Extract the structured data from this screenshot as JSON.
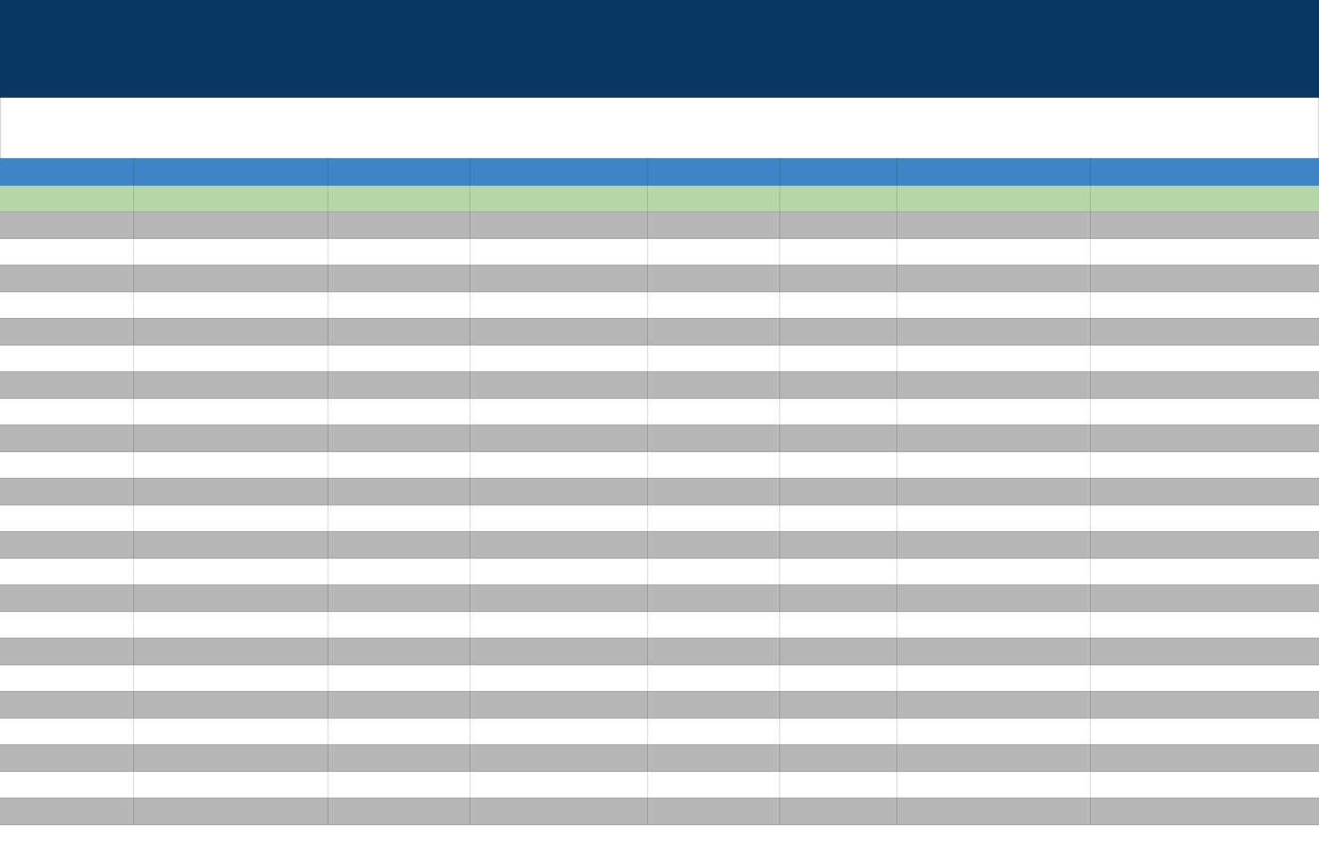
{
  "sheet": {
    "title": "",
    "subtitle": "",
    "colors": {
      "banner": "#083763",
      "header_row": "#3f85c6",
      "sub_header_row": "#b6d7a8",
      "band_gray": "#b7b7b7",
      "band_white": "#ffffff"
    },
    "columns": [
      "",
      "",
      "",
      "",
      "",
      "",
      "",
      ""
    ],
    "sub_header": [
      "",
      "",
      "",
      "",
      "",
      "",
      "",
      ""
    ],
    "row_count": 23
  }
}
